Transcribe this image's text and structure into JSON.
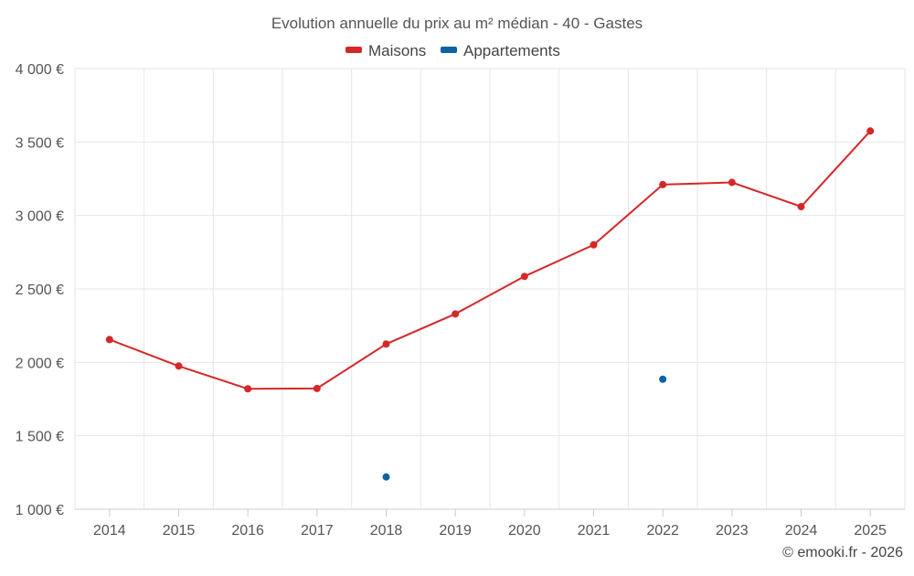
{
  "chart_data": {
    "type": "line",
    "title": "Evolution annuelle du prix au m² médian - 40 - Gastes",
    "categories": [
      "2014",
      "2015",
      "2016",
      "2017",
      "2018",
      "2019",
      "2020",
      "2021",
      "2022",
      "2023",
      "2024",
      "2025"
    ],
    "series": [
      {
        "name": "Maisons",
        "color": "#d62728",
        "values": [
          2155,
          1975,
          1820,
          1822,
          2125,
          2330,
          2585,
          2800,
          3210,
          3225,
          3060,
          3575
        ]
      },
      {
        "name": "Appartements",
        "color": "#0a63a6",
        "values": [
          null,
          null,
          null,
          null,
          1220,
          null,
          null,
          null,
          1885,
          null,
          null,
          null
        ]
      }
    ],
    "ylim": [
      1000,
      4000
    ],
    "yticks": [
      1000,
      1500,
      2000,
      2500,
      3000,
      3500,
      4000
    ],
    "ytick_labels": [
      "1 000 €",
      "1 500 €",
      "2 000 €",
      "2 500 €",
      "3 000 €",
      "3 500 €",
      "4 000 €"
    ],
    "grid": true,
    "legend_position": "top-center",
    "xlabel": "",
    "ylabel": ""
  },
  "credit": "© emooki.fr - 2026"
}
